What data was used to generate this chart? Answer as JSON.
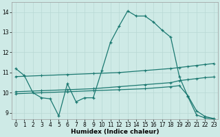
{
  "xlabel": "Humidex (Indice chaleur)",
  "bg_color": "#ceeae6",
  "grid_color": "#b8d8d4",
  "line_color": "#1a7870",
  "xlim": [
    -0.5,
    23.5
  ],
  "ylim": [
    8.7,
    14.5
  ],
  "yticks": [
    9,
    10,
    11,
    12,
    13,
    14
  ],
  "xticks": [
    0,
    1,
    2,
    3,
    4,
    5,
    6,
    7,
    8,
    9,
    10,
    11,
    12,
    13,
    14,
    15,
    16,
    17,
    18,
    19,
    20,
    21,
    22,
    23
  ],
  "line1_x": [
    0,
    1,
    2,
    3,
    4,
    5,
    6,
    7,
    8,
    9,
    10,
    11,
    12,
    13,
    14,
    15,
    16,
    17,
    18,
    19,
    20,
    21,
    22,
    23
  ],
  "line1_y": [
    11.2,
    10.85,
    10.0,
    9.75,
    9.7,
    8.85,
    10.45,
    9.55,
    9.75,
    9.75,
    11.1,
    12.5,
    13.3,
    14.05,
    13.8,
    13.8,
    13.5,
    13.1,
    12.75,
    10.8,
    9.8,
    8.9,
    8.75,
    8.7
  ],
  "line2_x": [
    0,
    3,
    6,
    9,
    12,
    15,
    18,
    19,
    20,
    21,
    22,
    23
  ],
  "line2_y": [
    10.8,
    10.85,
    10.9,
    10.95,
    11.0,
    11.1,
    11.2,
    11.25,
    11.3,
    11.35,
    11.4,
    11.45
  ],
  "line3_x": [
    0,
    3,
    6,
    9,
    12,
    15,
    18,
    19,
    20,
    21,
    22,
    23
  ],
  "line3_y": [
    10.05,
    10.1,
    10.15,
    10.2,
    10.3,
    10.4,
    10.5,
    10.6,
    10.65,
    10.7,
    10.75,
    10.78
  ],
  "line4_x": [
    0,
    3,
    6,
    9,
    12,
    15,
    18,
    19,
    20,
    21,
    22,
    23
  ],
  "line4_y": [
    9.95,
    10.0,
    10.05,
    10.1,
    10.15,
    10.2,
    10.3,
    10.35,
    9.85,
    9.1,
    8.82,
    8.72
  ]
}
